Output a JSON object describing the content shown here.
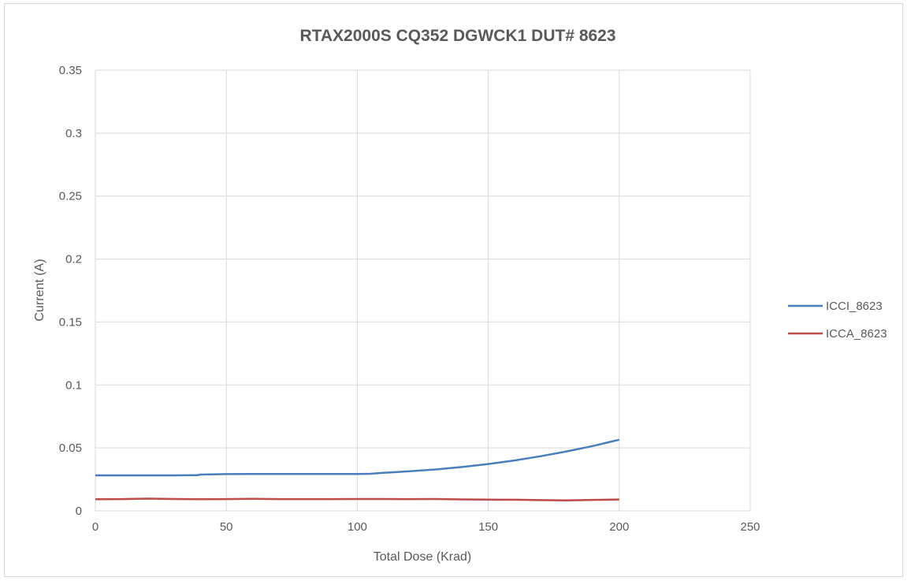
{
  "chart_data": {
    "type": "line",
    "title": "RTAX2000S CQ352 DGWCK1 DUT# 8623",
    "xlabel": "Total Dose (Krad)",
    "ylabel": "Current (A)",
    "xlim": [
      0,
      250
    ],
    "ylim": [
      0,
      0.35
    ],
    "x_ticks": [
      "0",
      "50",
      "100",
      "150",
      "200",
      "250"
    ],
    "y_ticks": [
      "0",
      "0.05",
      "0.1",
      "0.15",
      "0.2",
      "0.25",
      "0.3",
      "0.35"
    ],
    "grid": true,
    "legend_position": "right",
    "series": [
      {
        "name": "ICCI_8623",
        "color": "#4a7ebb",
        "x": [
          0,
          10,
          20,
          30,
          39,
          40,
          50,
          60,
          70,
          80,
          90,
          100,
          105,
          110,
          120,
          130,
          140,
          150,
          160,
          170,
          180,
          190,
          200
        ],
        "y": [
          0.0282,
          0.0282,
          0.0282,
          0.0282,
          0.0283,
          0.0288,
          0.0292,
          0.0293,
          0.0293,
          0.0293,
          0.0293,
          0.0293,
          0.0294,
          0.0302,
          0.0314,
          0.0329,
          0.0348,
          0.0372,
          0.04,
          0.0434,
          0.0472,
          0.0515,
          0.0565
        ]
      },
      {
        "name": "ICCA_8623",
        "color": "#be4b48",
        "x": [
          0,
          10,
          20,
          30,
          40,
          50,
          60,
          70,
          80,
          90,
          100,
          110,
          120,
          130,
          140,
          150,
          160,
          170,
          180,
          190,
          200
        ],
        "y": [
          0.0092,
          0.0093,
          0.0097,
          0.0094,
          0.0092,
          0.0093,
          0.0095,
          0.0093,
          0.0093,
          0.0093,
          0.0094,
          0.0094,
          0.0093,
          0.0094,
          0.0091,
          0.0089,
          0.0088,
          0.0085,
          0.0083,
          0.0087,
          0.009
        ]
      }
    ]
  }
}
